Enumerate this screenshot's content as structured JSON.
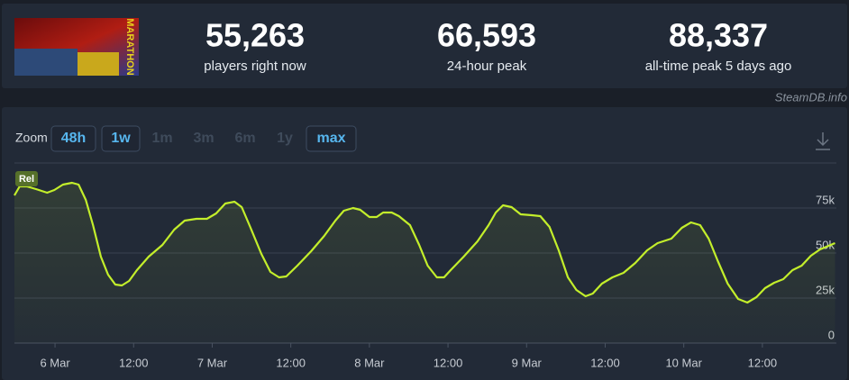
{
  "header": {
    "game_logo_text": "MARATHON",
    "stats": [
      {
        "value": "55,263",
        "label": "players right now"
      },
      {
        "value": "66,593",
        "label": "24-hour peak"
      },
      {
        "value": "88,337",
        "label": "all-time peak 5 days ago"
      }
    ],
    "source": "SteamDB.info"
  },
  "zoom": {
    "label": "Zoom",
    "buttons": [
      "48h",
      "1w",
      "1m",
      "3m",
      "6m",
      "1y",
      "max"
    ]
  },
  "chart_data": {
    "type": "line",
    "annotation": "Rel",
    "color": "#c3ee2b",
    "grid": true,
    "xlim": [
      -6.2,
      119.3
    ],
    "ylim": [
      0,
      100000
    ],
    "xticks": [
      {
        "value": 0,
        "label": "6 Mar"
      },
      {
        "value": 12,
        "label": "12:00"
      },
      {
        "value": 24,
        "label": "7 Mar"
      },
      {
        "value": 36,
        "label": "12:00"
      },
      {
        "value": 48,
        "label": "8 Mar"
      },
      {
        "value": 60,
        "label": "12:00"
      },
      {
        "value": 72,
        "label": "9 Mar"
      },
      {
        "value": 84,
        "label": "12:00"
      },
      {
        "value": 96,
        "label": "10 Mar"
      },
      {
        "value": 108,
        "label": "12:00"
      }
    ],
    "yticks": [
      0,
      {
        "value": 25000,
        "label": "25k"
      },
      {
        "value": 50000,
        "label": "50k"
      },
      {
        "value": 75000,
        "label": "75k"
      }
    ],
    "x": [
      -6.2,
      -5.4,
      -4.3,
      -2.9,
      -1.2,
      -0.1,
      1.2,
      2.6,
      3.6,
      4.7,
      5.8,
      7.0,
      8.1,
      9.2,
      10.2,
      11.3,
      12.5,
      14.3,
      16.4,
      18.2,
      19.8,
      21.6,
      23.2,
      24.6,
      26.0,
      27.4,
      28.5,
      29.8,
      31.5,
      32.9,
      34.2,
      35.3,
      37.0,
      39.1,
      41.1,
      42.8,
      44.1,
      45.5,
      46.6,
      48.0,
      49.1,
      50.1,
      51.4,
      52.5,
      54.2,
      55.6,
      56.9,
      58.3,
      59.4,
      60.4,
      62.4,
      64.5,
      66.2,
      67.3,
      68.4,
      69.7,
      71.1,
      72.8,
      74.1,
      75.5,
      76.9,
      78.3,
      79.6,
      81.0,
      82.1,
      83.5,
      85.1,
      86.8,
      88.6,
      90.4,
      92.0,
      94.1,
      95.7,
      97.1,
      98.5,
      99.8,
      101.2,
      102.7,
      104.3,
      105.7,
      107.1,
      108.4,
      109.8,
      111.2,
      112.6,
      114.0,
      115.4,
      116.8,
      118.1,
      119.1
    ],
    "values": [
      82000,
      87000,
      87000,
      85500,
      83500,
      85000,
      88000,
      89000,
      88000,
      79500,
      65500,
      48000,
      38000,
      32500,
      32000,
      34500,
      40500,
      48000,
      54500,
      63000,
      68000,
      69000,
      69000,
      72000,
      77500,
      78500,
      75500,
      64500,
      49500,
      39500,
      36500,
      37000,
      43000,
      51000,
      59500,
      68000,
      73500,
      75000,
      74000,
      70000,
      70000,
      72500,
      72500,
      70500,
      65500,
      54500,
      43000,
      36500,
      36500,
      40500,
      48000,
      56500,
      65500,
      72500,
      76500,
      75500,
      71500,
      71000,
      70500,
      64500,
      51500,
      36500,
      29500,
      26000,
      27500,
      33000,
      36500,
      39000,
      44500,
      51500,
      55500,
      58000,
      64000,
      67000,
      65500,
      58000,
      45500,
      33000,
      24500,
      22500,
      25500,
      30500,
      33500,
      35500,
      40500,
      43000,
      48500,
      52000,
      54000,
      55500
    ]
  }
}
